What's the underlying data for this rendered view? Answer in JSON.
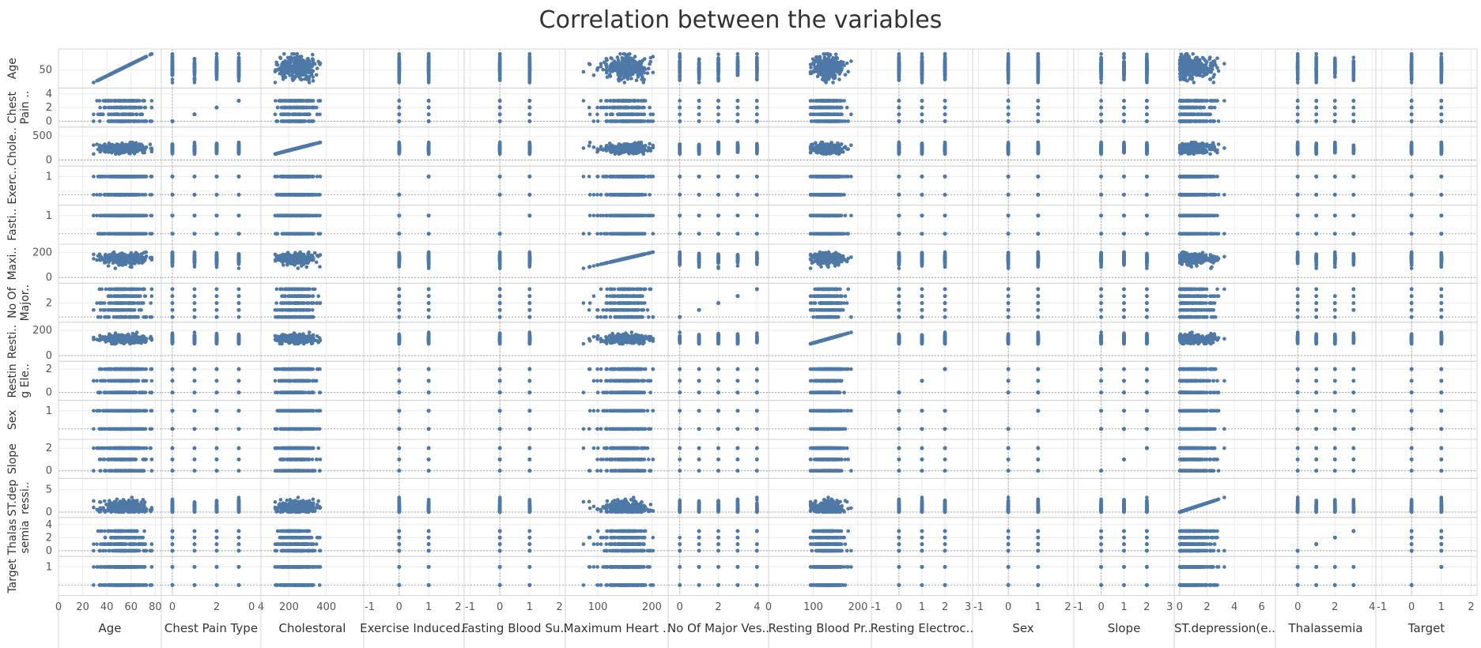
{
  "title": "Correlation between the variables",
  "colors": {
    "mark": "#4e79a7",
    "grid": "#ebebeb",
    "axis": "#a5a5a5"
  },
  "chart_data": {
    "type": "scatter",
    "title": "Correlation between the variables",
    "grid": true,
    "variables": [
      {
        "key": "age",
        "label": "Age",
        "row_label": [
          "Age"
        ],
        "range": [
          0,
          85
        ],
        "ticks": [
          [
            "0",
            0
          ],
          [
            "20",
            20
          ],
          [
            "40",
            40
          ],
          [
            "60",
            60
          ],
          [
            "80",
            80
          ]
        ],
        "row_ticks": [
          [
            "50",
            50
          ]
        ],
        "row_range": [
          25,
          80
        ],
        "kind": "cont",
        "min": 29,
        "max": 77,
        "center": 54,
        "spread": 9
      },
      {
        "key": "cp",
        "label": "Chest Pain Type",
        "row_label": [
          "Chest",
          "Pain .."
        ],
        "range": [
          -0.5,
          4
        ],
        "ticks": [
          [
            "0",
            0
          ],
          [
            "2",
            2
          ],
          [
            "4",
            4
          ]
        ],
        "row_ticks": [
          [
            "4",
            4
          ],
          [
            "2",
            2
          ],
          [
            "0",
            0
          ]
        ],
        "row_range": [
          -0.4,
          4.4
        ],
        "kind": "disc",
        "values": [
          0,
          1,
          2,
          3
        ]
      },
      {
        "key": "chol",
        "label": "Cholestoral",
        "row_label": [
          "Chole.."
        ],
        "range": [
          50,
          600
        ],
        "ticks": [
          [
            "0",
            0
          ],
          [
            "200",
            200
          ],
          [
            "400",
            400
          ]
        ],
        "row_ticks": [
          [
            "500",
            500
          ],
          [
            "0",
            0
          ]
        ],
        "row_range": [
          -60,
          620
        ],
        "kind": "cont",
        "min": 126,
        "max": 564,
        "center": 245,
        "spread": 50
      },
      {
        "key": "exang",
        "label": "Exercise Induced..",
        "row_label": [
          "Exerc.."
        ],
        "range": [
          -1.2,
          2.2
        ],
        "ticks": [
          [
            "-1",
            -1
          ],
          [
            "0",
            0
          ],
          [
            "1",
            1
          ],
          [
            "2",
            2
          ]
        ],
        "row_ticks": [
          [
            "1",
            1
          ]
        ],
        "row_range": [
          -0.4,
          1.4
        ],
        "kind": "disc",
        "values": [
          0,
          1
        ]
      },
      {
        "key": "fbs",
        "label": "Fasting Blood Su..",
        "row_label": [
          "Fasti.."
        ],
        "range": [
          -1.2,
          2.2
        ],
        "ticks": [
          [
            "-1",
            -1
          ],
          [
            "0",
            0
          ],
          [
            "1",
            1
          ],
          [
            "2",
            2
          ]
        ],
        "row_ticks": [
          [
            "1",
            1
          ]
        ],
        "row_range": [
          -0.4,
          1.4
        ],
        "kind": "disc",
        "values": [
          0,
          1
        ]
      },
      {
        "key": "thal",
        "label": "Maximum Heart ..",
        "row_label": [
          "Maxi.."
        ],
        "range": [
          40,
          230
        ],
        "ticks": [
          [
            "100",
            100
          ],
          [
            "200",
            200
          ]
        ],
        "row_ticks": [
          [
            "200",
            200
          ],
          [
            "0",
            0
          ]
        ],
        "row_range": [
          -20,
          240
        ],
        "kind": "cont",
        "min": 71,
        "max": 202,
        "center": 150,
        "spread": 22
      },
      {
        "key": "ca",
        "label": "No Of Major Ves..",
        "row_label": [
          "No Of",
          "Major.."
        ],
        "range": [
          -0.6,
          4.6
        ],
        "ticks": [
          [
            "0",
            0
          ],
          [
            "2",
            2
          ],
          [
            "4",
            4
          ]
        ],
        "row_ticks": [
          [
            "2",
            2
          ]
        ],
        "row_range": [
          -0.3,
          4.4
        ],
        "kind": "disc",
        "values": [
          0,
          1,
          2,
          3,
          4
        ]
      },
      {
        "key": "bp",
        "label": "Resting Blood Pr..",
        "row_label": [
          "Resti.."
        ],
        "range": [
          0,
          230
        ],
        "ticks": [
          [
            "0",
            0
          ],
          [
            "100",
            100
          ],
          [
            "200",
            200
          ]
        ],
        "row_ticks": [
          [
            "200",
            200
          ],
          [
            "0",
            0
          ]
        ],
        "row_range": [
          -20,
          240
        ],
        "kind": "cont",
        "min": 94,
        "max": 200,
        "center": 131,
        "spread": 17
      },
      {
        "key": "ecg",
        "label": "Resting Electroc..",
        "row_label": [
          "Restin",
          "g Ele.."
        ],
        "range": [
          -1.2,
          3.2
        ],
        "ticks": [
          [
            "-1",
            -1
          ],
          [
            "0",
            0
          ],
          [
            "1",
            1
          ],
          [
            "2",
            2
          ],
          [
            "3",
            3
          ]
        ],
        "row_ticks": [
          [
            "2",
            2
          ],
          [
            "0",
            0
          ]
        ],
        "row_range": [
          -0.4,
          2.4
        ],
        "kind": "disc",
        "values": [
          0,
          1,
          2
        ]
      },
      {
        "key": "sex",
        "label": "Sex",
        "row_label": [
          "Sex"
        ],
        "range": [
          -1.2,
          2.2
        ],
        "ticks": [
          [
            "-1",
            -1
          ],
          [
            "0",
            0
          ],
          [
            "1",
            1
          ],
          [
            "2",
            2
          ]
        ],
        "row_ticks": [
          [
            "1",
            1
          ]
        ],
        "row_range": [
          -0.4,
          1.4
        ],
        "kind": "disc",
        "values": [
          0,
          1
        ]
      },
      {
        "key": "slope",
        "label": "Slope",
        "row_label": [
          "Slope"
        ],
        "range": [
          -1.2,
          3.2
        ],
        "ticks": [
          [
            "-1",
            -1
          ],
          [
            "0",
            0
          ],
          [
            "1",
            1
          ],
          [
            "2",
            2
          ],
          [
            "3",
            3
          ]
        ],
        "row_ticks": [
          [
            "2",
            2
          ],
          [
            "0",
            0
          ]
        ],
        "row_range": [
          -0.4,
          2.5
        ],
        "kind": "disc",
        "values": [
          0,
          1,
          2
        ]
      },
      {
        "key": "oldpeak",
        "label": "ST.depression(e..",
        "row_label": [
          "ST.dep",
          "ressi.."
        ],
        "range": [
          -0.4,
          7
        ],
        "ticks": [
          [
            "0",
            0
          ],
          [
            "2",
            2
          ],
          [
            "4",
            4
          ],
          [
            "6",
            6
          ]
        ],
        "row_ticks": [
          [
            "5",
            5
          ],
          [
            "0",
            0
          ]
        ],
        "row_range": [
          -0.5,
          6.8
        ],
        "kind": "cont",
        "min": 0,
        "max": 6.2,
        "center": 1.0,
        "spread": 1.1
      },
      {
        "key": "thals",
        "label": "Thalassemia",
        "row_label": [
          "Thalas",
          "semia"
        ],
        "range": [
          -1.2,
          4.2
        ],
        "ticks": [
          [
            "0",
            0
          ],
          [
            "2",
            2
          ],
          [
            "4",
            4
          ]
        ],
        "row_ticks": [
          [
            "4",
            4
          ],
          [
            "2",
            2
          ],
          [
            "0",
            0
          ]
        ],
        "row_range": [
          -0.4,
          4.6
        ],
        "kind": "disc",
        "values": [
          0,
          1,
          2,
          3
        ]
      },
      {
        "key": "target",
        "label": "Target",
        "row_label": [
          "Target"
        ],
        "range": [
          -1.2,
          2.2
        ],
        "ticks": [
          [
            "-1",
            -1
          ],
          [
            "0",
            0
          ],
          [
            "1",
            1
          ],
          [
            "2",
            2
          ]
        ],
        "row_ticks": [
          [
            "1",
            1
          ]
        ],
        "row_range": [
          -0.4,
          1.4
        ],
        "kind": "disc",
        "values": [
          0,
          1
        ]
      }
    ]
  }
}
